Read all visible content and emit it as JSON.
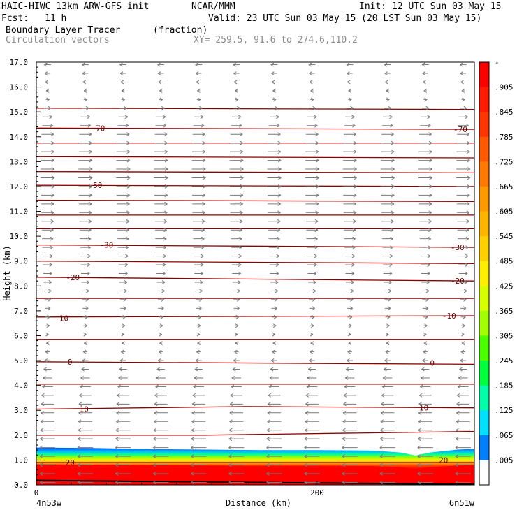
{
  "header": {
    "model_line": "HAIC-HIWC 13km ARW-GFS init",
    "org": "NCAR/MMM",
    "init": "Init: 12 UTC Sun 03 May 15",
    "fcst_label": "Fcst:",
    "fcst_value": "11 h",
    "valid": "Valid: 23 UTC Sun 03 May 15 (20 LST Sun 03 May 15)",
    "field_name": "Boundary Layer Tracer",
    "field_units": "(fraction)",
    "vector_label": "Circulation vectors",
    "xy_label": "XY= 259.5, 91.6 to 274.6,110.2"
  },
  "chart_data": {
    "type": "heatmap",
    "ylabel": "Height (km)",
    "xlabel": "Distance (km)",
    "x_ticks": [
      "0",
      "200"
    ],
    "x_start_label": "4n53w",
    "x_end_label": "6n51w",
    "xlim": [
      0,
      312
    ],
    "ylim": [
      0,
      17
    ],
    "y_ticks": [
      "0.0",
      "1.0",
      "2.0",
      "3.0",
      "4.0",
      "5.0",
      "6.0",
      "7.0",
      "8.0",
      "9.0",
      "10.0",
      "11.0",
      "12.0",
      "13.0",
      "14.0",
      "15.0",
      "16.0",
      "17.0"
    ],
    "colorbar_labels": [
      "-",
      ".905",
      ".845",
      ".785",
      ".725",
      ".665",
      ".605",
      ".545",
      ".485",
      ".425",
      ".365",
      ".305",
      ".245",
      ".185",
      ".125",
      ".065",
      ".005"
    ],
    "colorbar_colors": [
      "#ff0000",
      "#ff1a00",
      "#ff3500",
      "#ff5a00",
      "#ff7a00",
      "#ff9900",
      "#ffb400",
      "#ffd000",
      "#ffee00",
      "#d8ff00",
      "#a0ff00",
      "#4cff00",
      "#00ff3c",
      "#00ffa8",
      "#00e0ff",
      "#0080ff",
      "#ffffff"
    ],
    "tracer_top_km": [
      [
        0,
        1.5
      ],
      [
        40,
        1.48
      ],
      [
        80,
        1.44
      ],
      [
        120,
        1.42
      ],
      [
        160,
        1.4
      ],
      [
        200,
        1.4
      ],
      [
        240,
        1.38
      ],
      [
        260,
        1.3
      ],
      [
        270,
        1.18
      ],
      [
        280,
        1.3
      ],
      [
        300,
        1.42
      ],
      [
        312,
        1.45
      ]
    ],
    "contour_line_label": "Contour values labeled on chart",
    "contours": [
      {
        "label": "20",
        "pts": [
          [
            0,
            0.9
          ],
          [
            312,
            0.9
          ]
        ],
        "label_at": [
          [
            24,
            0.9
          ],
          [
            290,
            1.0
          ]
        ]
      },
      {
        "label": "10",
        "pts": [
          [
            0,
            3.05
          ],
          [
            150,
            3.15
          ],
          [
            312,
            3.1
          ]
        ],
        "label_at": [
          [
            34,
            3.05
          ],
          [
            276,
            3.1
          ]
        ]
      },
      {
        "label": "",
        "pts": [
          [
            0,
            2.0
          ],
          [
            120,
            2.0
          ],
          [
            312,
            2.15
          ]
        ],
        "label_at": []
      },
      {
        "label": "",
        "pts": [
          [
            0,
            4.05
          ],
          [
            312,
            4.05
          ]
        ],
        "label_at": []
      },
      {
        "label": "0",
        "pts": [
          [
            0,
            4.95
          ],
          [
            312,
            4.85
          ]
        ],
        "label_at": [
          [
            24,
            4.95
          ],
          [
            282,
            4.9
          ]
        ]
      },
      {
        "label": "",
        "pts": [
          [
            0,
            5.85
          ],
          [
            312,
            5.85
          ]
        ],
        "label_at": []
      },
      {
        "label": "-10",
        "pts": [
          [
            0,
            6.75
          ],
          [
            312,
            6.8
          ]
        ],
        "label_at": [
          [
            18,
            6.7
          ],
          [
            294,
            6.8
          ]
        ]
      },
      {
        "label": "",
        "pts": [
          [
            0,
            7.5
          ],
          [
            312,
            7.5
          ]
        ],
        "label_at": []
      },
      {
        "label": "-20",
        "pts": [
          [
            0,
            8.35
          ],
          [
            312,
            8.2
          ]
        ],
        "label_at": [
          [
            26,
            8.35
          ],
          [
            300,
            8.2
          ]
        ]
      },
      {
        "label": "",
        "pts": [
          [
            0,
            9.0
          ],
          [
            312,
            8.9
          ]
        ],
        "label_at": []
      },
      {
        "label": "-30",
        "pts": [
          [
            0,
            9.65
          ],
          [
            312,
            9.55
          ]
        ],
        "label_at": [
          [
            50,
            9.65
          ],
          [
            300,
            9.55
          ]
        ]
      },
      {
        "label": "",
        "pts": [
          [
            0,
            10.3
          ],
          [
            312,
            10.3
          ]
        ],
        "label_at": []
      },
      {
        "label": "",
        "pts": [
          [
            0,
            10.85
          ],
          [
            312,
            10.85
          ]
        ],
        "label_at": []
      },
      {
        "label": "",
        "pts": [
          [
            0,
            11.45
          ],
          [
            312,
            11.4
          ]
        ],
        "label_at": []
      },
      {
        "label": "-50",
        "pts": [
          [
            0,
            12.05
          ],
          [
            312,
            12.0
          ]
        ],
        "label_at": [
          [
            42,
            12.05
          ]
        ]
      },
      {
        "label": "",
        "pts": [
          [
            0,
            12.6
          ],
          [
            312,
            12.55
          ]
        ],
        "label_at": []
      },
      {
        "label": "",
        "pts": [
          [
            0,
            13.2
          ],
          [
            312,
            13.15
          ]
        ],
        "label_at": []
      },
      {
        "label": "",
        "pts": [
          [
            0,
            13.75
          ],
          [
            312,
            13.75
          ]
        ],
        "label_at": []
      },
      {
        "label": "-70",
        "pts": [
          [
            0,
            14.35
          ],
          [
            312,
            14.3
          ]
        ],
        "label_at": [
          [
            44,
            14.35
          ],
          [
            302,
            14.3
          ]
        ]
      },
      {
        "label": "",
        "pts": [
          [
            0,
            15.15
          ],
          [
            312,
            15.1
          ]
        ],
        "label_at": []
      }
    ],
    "wind_u_profile": [
      [
        0.0,
        -1.0
      ],
      [
        1.5,
        -1.0
      ],
      [
        2.5,
        -0.9
      ],
      [
        3.5,
        -0.8
      ],
      [
        4.5,
        -0.5
      ],
      [
        5.5,
        -0.15
      ],
      [
        6.5,
        0.2
      ],
      [
        8.0,
        0.45
      ],
      [
        9.5,
        0.65
      ],
      [
        11.0,
        0.8
      ],
      [
        12.5,
        0.9
      ],
      [
        14.0,
        0.8
      ],
      [
        15.0,
        0.5
      ],
      [
        16.0,
        -0.2
      ],
      [
        17.0,
        -0.4
      ]
    ]
  }
}
